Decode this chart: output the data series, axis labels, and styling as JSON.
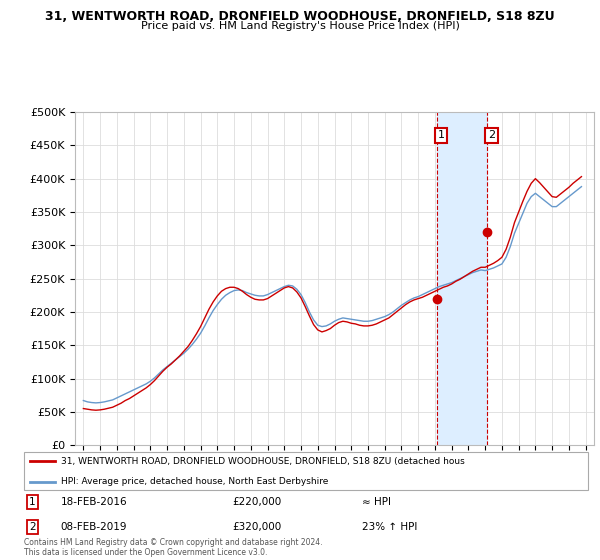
{
  "title": "31, WENTWORTH ROAD, DRONFIELD WOODHOUSE, DRONFIELD, S18 8ZU",
  "subtitle": "Price paid vs. HM Land Registry's House Price Index (HPI)",
  "ylabel_ticks": [
    "£0",
    "£50K",
    "£100K",
    "£150K",
    "£200K",
    "£250K",
    "£300K",
    "£350K",
    "£400K",
    "£450K",
    "£500K"
  ],
  "ytick_vals": [
    0,
    50000,
    100000,
    150000,
    200000,
    250000,
    300000,
    350000,
    400000,
    450000,
    500000
  ],
  "ylim": [
    0,
    500000
  ],
  "xlim_start": 1994.5,
  "xlim_end": 2025.5,
  "xtick_years": [
    1995,
    1996,
    1997,
    1998,
    1999,
    2000,
    2001,
    2002,
    2003,
    2004,
    2005,
    2006,
    2007,
    2008,
    2009,
    2010,
    2011,
    2012,
    2013,
    2014,
    2015,
    2016,
    2017,
    2018,
    2019,
    2020,
    2021,
    2022,
    2023,
    2024,
    2025
  ],
  "red_line_color": "#cc0000",
  "blue_line_color": "#6699cc",
  "shade_color": "#ddeeff",
  "marker1_x": 2016.12,
  "marker1_y": 220000,
  "marker1_label": "1",
  "marker1_date": "18-FEB-2016",
  "marker1_price": "£220,000",
  "marker1_vs_hpi": "≈ HPI",
  "marker2_x": 2019.12,
  "marker2_y": 320000,
  "marker2_label": "2",
  "marker2_date": "08-FEB-2019",
  "marker2_price": "£320,000",
  "marker2_vs_hpi": "23% ↑ HPI",
  "legend_line1": "31, WENTWORTH ROAD, DRONFIELD WOODHOUSE, DRONFIELD, S18 8ZU (detached hous",
  "legend_line2": "HPI: Average price, detached house, North East Derbyshire",
  "footnote": "Contains HM Land Registry data © Crown copyright and database right 2024.\nThis data is licensed under the Open Government Licence v3.0.",
  "hpi_data_x": [
    1995.0,
    1995.25,
    1995.5,
    1995.75,
    1996.0,
    1996.25,
    1996.5,
    1996.75,
    1997.0,
    1997.25,
    1997.5,
    1997.75,
    1998.0,
    1998.25,
    1998.5,
    1998.75,
    1999.0,
    1999.25,
    1999.5,
    1999.75,
    2000.0,
    2000.25,
    2000.5,
    2000.75,
    2001.0,
    2001.25,
    2001.5,
    2001.75,
    2002.0,
    2002.25,
    2002.5,
    2002.75,
    2003.0,
    2003.25,
    2003.5,
    2003.75,
    2004.0,
    2004.25,
    2004.5,
    2004.75,
    2005.0,
    2005.25,
    2005.5,
    2005.75,
    2006.0,
    2006.25,
    2006.5,
    2006.75,
    2007.0,
    2007.25,
    2007.5,
    2007.75,
    2008.0,
    2008.25,
    2008.5,
    2008.75,
    2009.0,
    2009.25,
    2009.5,
    2009.75,
    2010.0,
    2010.25,
    2010.5,
    2010.75,
    2011.0,
    2011.25,
    2011.5,
    2011.75,
    2012.0,
    2012.25,
    2012.5,
    2012.75,
    2013.0,
    2013.25,
    2013.5,
    2013.75,
    2014.0,
    2014.25,
    2014.5,
    2014.75,
    2015.0,
    2015.25,
    2015.5,
    2015.75,
    2016.0,
    2016.25,
    2016.5,
    2016.75,
    2017.0,
    2017.25,
    2017.5,
    2017.75,
    2018.0,
    2018.25,
    2018.5,
    2018.75,
    2019.0,
    2019.25,
    2019.5,
    2019.75,
    2020.0,
    2020.25,
    2020.5,
    2020.75,
    2021.0,
    2021.25,
    2021.5,
    2021.75,
    2022.0,
    2022.25,
    2022.5,
    2022.75,
    2023.0,
    2023.25,
    2023.5,
    2023.75,
    2024.0,
    2024.25,
    2024.5,
    2024.75
  ],
  "hpi_data_y": [
    67000,
    65000,
    64000,
    63500,
    64000,
    65000,
    66500,
    68000,
    71000,
    74000,
    77000,
    80000,
    83000,
    86000,
    89000,
    92000,
    96000,
    101000,
    107000,
    113000,
    118000,
    123000,
    128000,
    133000,
    138000,
    144000,
    151000,
    159000,
    168000,
    179000,
    191000,
    202000,
    211000,
    219000,
    225000,
    229000,
    232000,
    233000,
    232000,
    229000,
    227000,
    225000,
    224000,
    224000,
    226000,
    229000,
    232000,
    235000,
    238000,
    240000,
    239000,
    234000,
    226000,
    214000,
    200000,
    188000,
    180000,
    178000,
    179000,
    182000,
    186000,
    189000,
    191000,
    190000,
    189000,
    188000,
    187000,
    186000,
    186000,
    187000,
    189000,
    191000,
    193000,
    196000,
    200000,
    205000,
    210000,
    214000,
    218000,
    221000,
    223000,
    226000,
    229000,
    232000,
    235000,
    238000,
    240000,
    242000,
    244000,
    247000,
    250000,
    253000,
    256000,
    259000,
    261000,
    263000,
    262000,
    264000,
    266000,
    269000,
    272000,
    282000,
    298000,
    318000,
    333000,
    348000,
    363000,
    373000,
    378000,
    373000,
    368000,
    363000,
    358000,
    358000,
    363000,
    368000,
    373000,
    378000,
    383000,
    388000
  ],
  "red_data_x": [
    1995.0,
    1995.25,
    1995.5,
    1995.75,
    1996.0,
    1996.25,
    1996.5,
    1996.75,
    1997.0,
    1997.25,
    1997.5,
    1997.75,
    1998.0,
    1998.25,
    1998.5,
    1998.75,
    1999.0,
    1999.25,
    1999.5,
    1999.75,
    2000.0,
    2000.25,
    2000.5,
    2000.75,
    2001.0,
    2001.25,
    2001.5,
    2001.75,
    2002.0,
    2002.25,
    2002.5,
    2002.75,
    2003.0,
    2003.25,
    2003.5,
    2003.75,
    2004.0,
    2004.25,
    2004.5,
    2004.75,
    2005.0,
    2005.25,
    2005.5,
    2005.75,
    2006.0,
    2006.25,
    2006.5,
    2006.75,
    2007.0,
    2007.25,
    2007.5,
    2007.75,
    2008.0,
    2008.25,
    2008.5,
    2008.75,
    2009.0,
    2009.25,
    2009.5,
    2009.75,
    2010.0,
    2010.25,
    2010.5,
    2010.75,
    2011.0,
    2011.25,
    2011.5,
    2011.75,
    2012.0,
    2012.25,
    2012.5,
    2012.75,
    2013.0,
    2013.25,
    2013.5,
    2013.75,
    2014.0,
    2014.25,
    2014.5,
    2014.75,
    2015.0,
    2015.25,
    2015.5,
    2015.75,
    2016.0,
    2016.25,
    2016.5,
    2016.75,
    2017.0,
    2017.25,
    2017.5,
    2017.75,
    2018.0,
    2018.25,
    2018.5,
    2018.75,
    2019.0,
    2019.25,
    2019.5,
    2019.75,
    2020.0,
    2020.25,
    2020.5,
    2020.75,
    2021.0,
    2021.25,
    2021.5,
    2021.75,
    2022.0,
    2022.25,
    2022.5,
    2022.75,
    2023.0,
    2023.25,
    2023.5,
    2023.75,
    2024.0,
    2024.25,
    2024.5,
    2024.75
  ],
  "red_data_y": [
    55000,
    54000,
    53000,
    52500,
    53000,
    54000,
    55500,
    57000,
    60000,
    63000,
    67000,
    70000,
    74000,
    78000,
    82000,
    86000,
    91000,
    97000,
    104000,
    111000,
    117000,
    122000,
    128000,
    134000,
    141000,
    148000,
    157000,
    167000,
    178000,
    191000,
    204000,
    215000,
    224000,
    231000,
    235000,
    237000,
    237000,
    235000,
    231000,
    226000,
    222000,
    219000,
    218000,
    218000,
    220000,
    224000,
    228000,
    232000,
    236000,
    238000,
    236000,
    230000,
    221000,
    208000,
    194000,
    181000,
    173000,
    170000,
    172000,
    175000,
    180000,
    184000,
    186000,
    185000,
    183000,
    182000,
    180000,
    179000,
    179000,
    180000,
    182000,
    185000,
    188000,
    191000,
    196000,
    201000,
    206000,
    211000,
    215000,
    218000,
    220000,
    222000,
    225000,
    228000,
    231000,
    234000,
    237000,
    239000,
    242000,
    246000,
    249000,
    253000,
    257000,
    261000,
    264000,
    267000,
    267000,
    270000,
    273000,
    277000,
    282000,
    294000,
    312000,
    334000,
    350000,
    366000,
    381000,
    393000,
    400000,
    394000,
    387000,
    380000,
    373000,
    372000,
    377000,
    382000,
    387000,
    393000,
    398000,
    403000
  ]
}
